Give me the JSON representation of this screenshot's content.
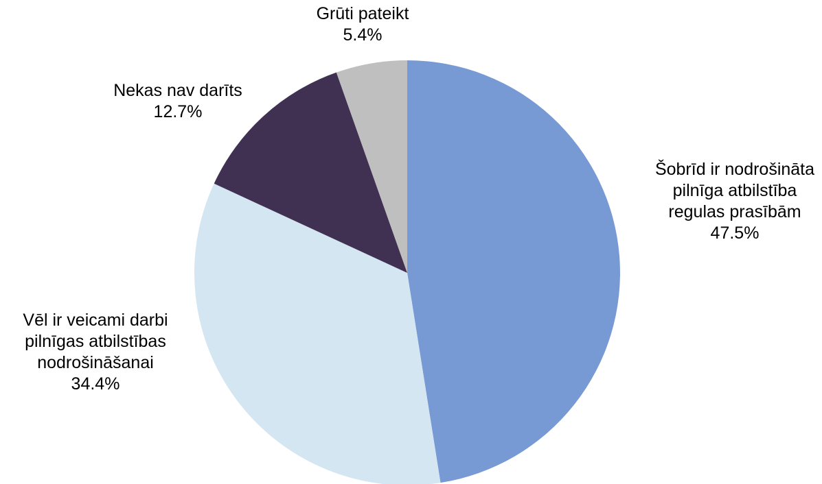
{
  "chart_data": {
    "type": "pie",
    "start_angle_deg": 0,
    "direction": "clockwise",
    "slices": [
      {
        "label_lines": [
          "Šobrīd ir nodrošināta",
          "pilnīga atbilstība",
          "regulas prasībām"
        ],
        "value": 47.5,
        "value_label": "47.5%",
        "color": "#7799d4"
      },
      {
        "label_lines": [
          "Vēl ir veicami darbi",
          "pilnīgas atbilstības",
          "nodrošināšanai"
        ],
        "value": 34.4,
        "value_label": "34.4%",
        "color": "#d4e6f2"
      },
      {
        "label_lines": [
          "Nekas nav darīts"
        ],
        "value": 12.7,
        "value_label": "12.7%",
        "color": "#403152"
      },
      {
        "label_lines": [
          "Grūti pateikt"
        ],
        "value": 5.4,
        "value_label": "5.4%",
        "color": "#bfbfbf"
      }
    ]
  }
}
